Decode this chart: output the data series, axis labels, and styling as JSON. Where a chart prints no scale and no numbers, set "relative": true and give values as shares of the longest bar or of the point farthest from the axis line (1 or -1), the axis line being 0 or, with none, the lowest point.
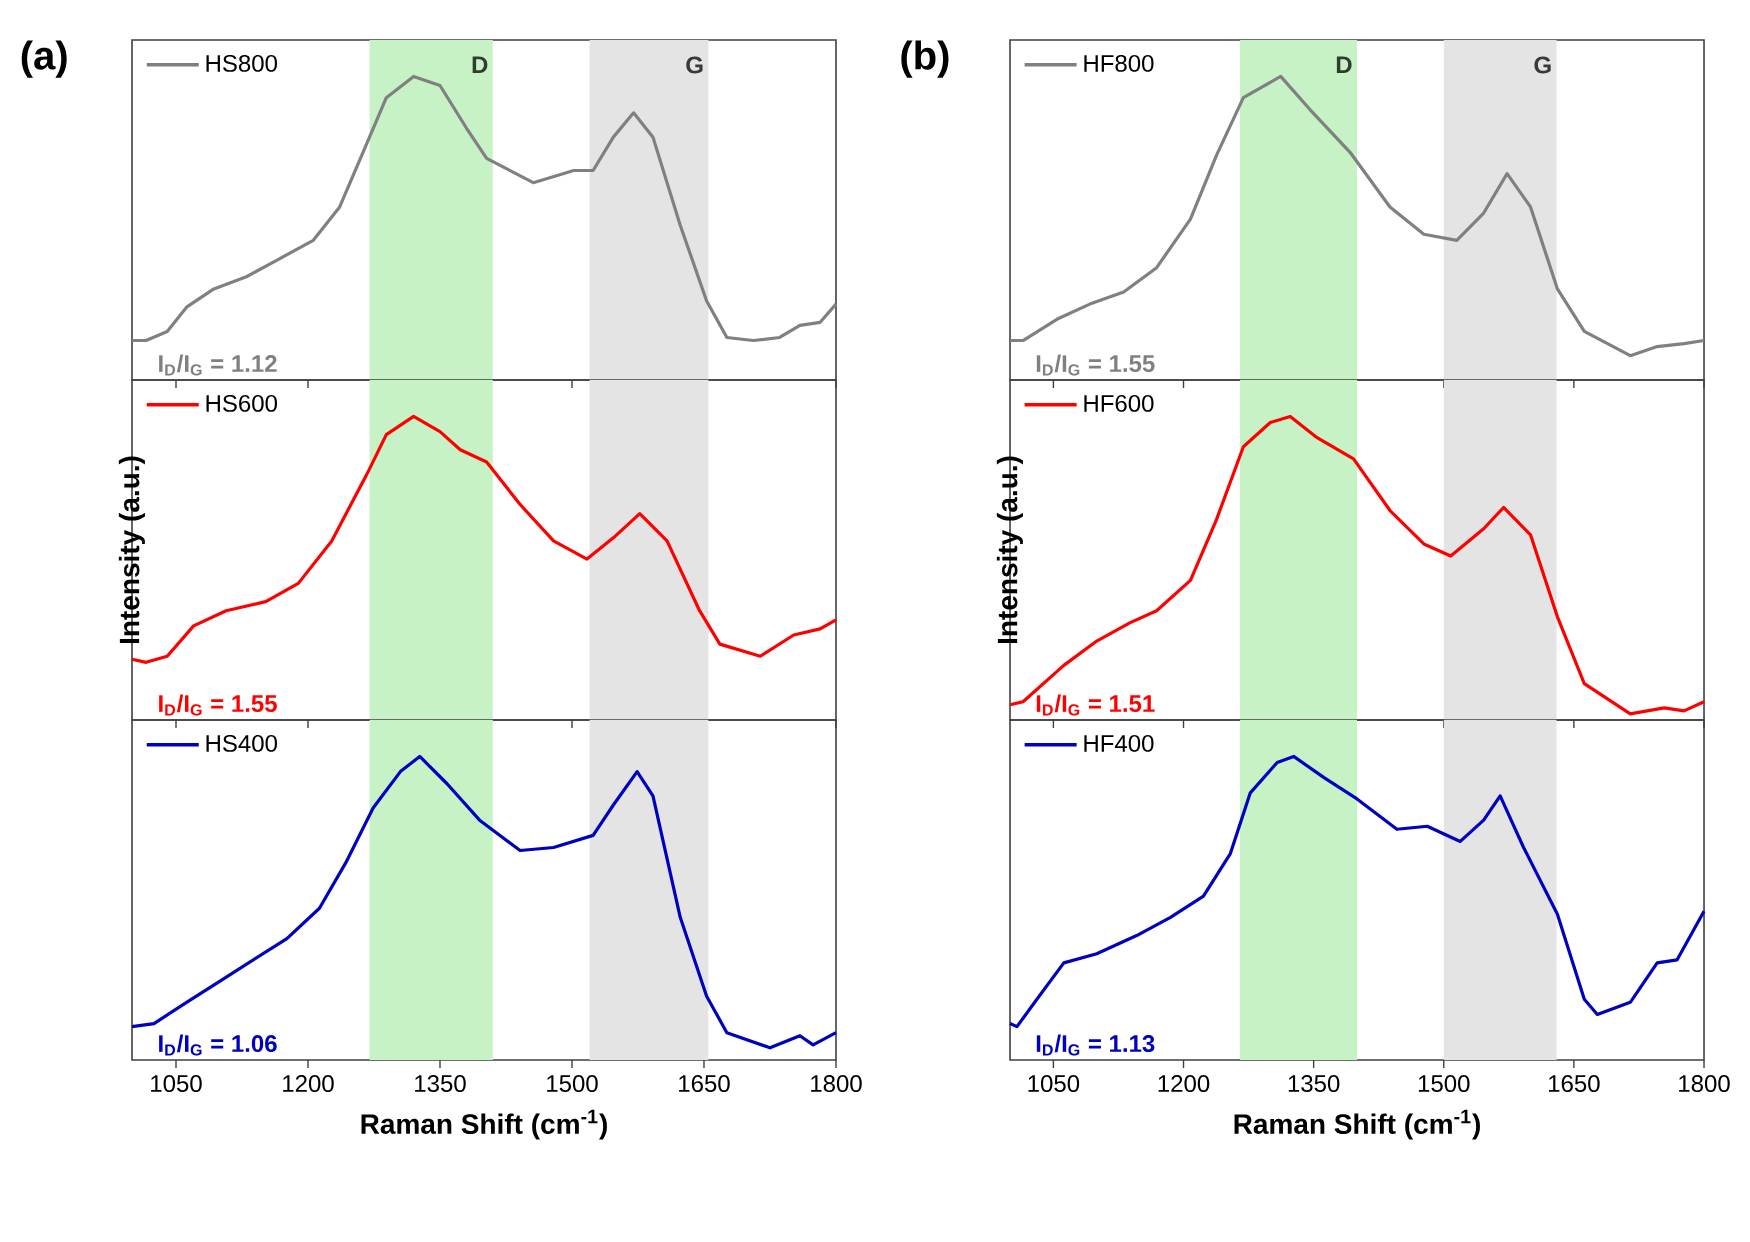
{
  "chart_data": [
    {
      "type": "line",
      "title": "(a)",
      "relative": true,
      "xlim": [
        1000,
        1800
      ],
      "xticks": [
        1050,
        1200,
        1350,
        1500,
        1650,
        1800
      ],
      "tick_labels": false,
      "legend": "top left",
      "line_style": "solid",
      "bands": [
        {
          "axis": "x",
          "from": 1270,
          "to": 1410,
          "label": "D",
          "color": "#c6f2c6"
        },
        {
          "axis": "x",
          "from": 1520,
          "to": 1655,
          "label": "G",
          "color": "#e4e4e4"
        }
      ],
      "annotations": [
        "I$_{D}$/I$_{G}$ = 1.12"
      ],
      "series": [
        {
          "name": "HS800",
          "color": "#808080",
          "x": [
            1000,
            1016,
            1040,
            1062,
            1093,
            1130,
            1168,
            1206,
            1236,
            1267,
            1289,
            1320,
            1350,
            1380,
            1403,
            1456,
            1502,
            1524,
            1547,
            1570,
            1592,
            1623,
            1653,
            1676,
            1706,
            1736,
            1759,
            1782,
            1800
          ],
          "values": [
            0.13,
            0.13,
            0.16,
            0.24,
            0.3,
            0.34,
            0.4,
            0.46,
            0.57,
            0.78,
            0.93,
            1.0,
            0.97,
            0.83,
            0.73,
            0.65,
            0.69,
            0.69,
            0.8,
            0.88,
            0.8,
            0.51,
            0.26,
            0.14,
            0.13,
            0.14,
            0.18,
            0.19,
            0.25
          ]
        }
      ]
    },
    {
      "type": "line",
      "title": "(b)",
      "relative": true,
      "xlim": [
        1000,
        1800
      ],
      "xticks": [
        1050,
        1200,
        1350,
        1500,
        1650,
        1800
      ],
      "tick_labels": false,
      "legend": "top left",
      "line_style": "solid",
      "bands": [
        {
          "axis": "x",
          "from": 1265,
          "to": 1400,
          "label": "D",
          "color": "#c6f2c6"
        },
        {
          "axis": "x",
          "from": 1500,
          "to": 1630,
          "label": "G",
          "color": "#e4e4e4"
        }
      ],
      "annotations": [
        "I$_{D}$/I$_{G}$ = 1.55"
      ],
      "series": [
        {
          "name": "HF800",
          "color": "#808080",
          "x": [
            1000,
            1015,
            1054,
            1092,
            1131,
            1169,
            1208,
            1238,
            1269,
            1312,
            1346,
            1392,
            1438,
            1477,
            1515,
            1546,
            1573,
            1600,
            1631,
            1662,
            1715,
            1746,
            1777,
            1800
          ],
          "values": [
            0.13,
            0.13,
            0.2,
            0.25,
            0.29,
            0.37,
            0.53,
            0.74,
            0.93,
            1.0,
            0.89,
            0.75,
            0.57,
            0.48,
            0.46,
            0.55,
            0.68,
            0.57,
            0.3,
            0.16,
            0.08,
            0.11,
            0.12,
            0.13
          ]
        }
      ]
    },
    {
      "type": "line",
      "relative": true,
      "xlim": [
        1000,
        1800
      ],
      "xticks": [
        1050,
        1200,
        1350,
        1500,
        1650,
        1800
      ],
      "tick_labels": false,
      "legend": "top left",
      "line_style": "solid",
      "ylabel": "Intensity (a.u.)",
      "bands": [
        {
          "axis": "x",
          "from": 1270,
          "to": 1410,
          "color": "#c6f2c6"
        },
        {
          "axis": "x",
          "from": 1520,
          "to": 1655,
          "color": "#e4e4e4"
        }
      ],
      "annotations": [
        "I$_{D}$/I$_{G}$ = 1.55"
      ],
      "series": [
        {
          "name": "HS600",
          "color": "#ff0000",
          "x": [
            1000,
            1016,
            1040,
            1070,
            1107,
            1152,
            1189,
            1227,
            1267,
            1289,
            1320,
            1350,
            1373,
            1403,
            1441,
            1479,
            1517,
            1547,
            1577,
            1608,
            1645,
            1668,
            1714,
            1752,
            1782,
            1800
          ],
          "values": [
            0.2,
            0.19,
            0.21,
            0.31,
            0.36,
            0.39,
            0.45,
            0.59,
            0.81,
            0.94,
            1.0,
            0.95,
            0.89,
            0.85,
            0.71,
            0.59,
            0.53,
            0.6,
            0.68,
            0.59,
            0.36,
            0.25,
            0.21,
            0.28,
            0.3,
            0.33
          ]
        }
      ]
    },
    {
      "type": "line",
      "relative": true,
      "xlim": [
        1000,
        1800
      ],
      "xticks": [
        1050,
        1200,
        1350,
        1500,
        1650,
        1800
      ],
      "tick_labels": false,
      "legend": "top left",
      "line_style": "solid",
      "ylabel": "Intensity (a.u.)",
      "bands": [
        {
          "axis": "x",
          "from": 1265,
          "to": 1400,
          "color": "#c6f2c6"
        },
        {
          "axis": "x",
          "from": 1500,
          "to": 1630,
          "color": "#e4e4e4"
        }
      ],
      "annotations": [
        "I$_{D}$/I$_{G}$ = 1.51"
      ],
      "series": [
        {
          "name": "HF600",
          "color": "#ff0000",
          "x": [
            1000,
            1015,
            1062,
            1100,
            1138,
            1169,
            1208,
            1238,
            1269,
            1300,
            1323,
            1354,
            1396,
            1438,
            1477,
            1508,
            1546,
            1569,
            1600,
            1631,
            1662,
            1715,
            1754,
            1777,
            1800
          ],
          "values": [
            0.05,
            0.06,
            0.18,
            0.26,
            0.32,
            0.36,
            0.46,
            0.66,
            0.9,
            0.98,
            1.0,
            0.93,
            0.86,
            0.69,
            0.58,
            0.54,
            0.63,
            0.7,
            0.61,
            0.34,
            0.12,
            0.02,
            0.04,
            0.03,
            0.06
          ]
        }
      ]
    },
    {
      "type": "line",
      "relative": true,
      "xlim": [
        1000,
        1800
      ],
      "xticks": [
        1050,
        1200,
        1350,
        1500,
        1650,
        1800
      ],
      "tick_labels": "x",
      "legend": "top left",
      "line_style": "solid",
      "xlabel": "Raman Shift (cm$^{-1}$)",
      "bands": [
        {
          "axis": "x",
          "from": 1270,
          "to": 1410,
          "color": "#c6f2c6"
        },
        {
          "axis": "x",
          "from": 1520,
          "to": 1655,
          "color": "#e4e4e4"
        }
      ],
      "annotations": [
        "I$_{D}$/I$_{G}$ = 1.06"
      ],
      "series": [
        {
          "name": "HS400",
          "color": "#0000c0",
          "x": [
            1000,
            1025,
            1062,
            1100,
            1138,
            1176,
            1213,
            1243,
            1274,
            1305,
            1327,
            1358,
            1395,
            1441,
            1479,
            1524,
            1547,
            1574,
            1592,
            1623,
            1653,
            1676,
            1725,
            1759,
            1774,
            1800
          ],
          "values": [
            0.11,
            0.12,
            0.19,
            0.26,
            0.33,
            0.4,
            0.5,
            0.65,
            0.83,
            0.95,
            1.0,
            0.91,
            0.79,
            0.69,
            0.7,
            0.74,
            0.84,
            0.95,
            0.87,
            0.47,
            0.21,
            0.09,
            0.04,
            0.08,
            0.05,
            0.09
          ]
        }
      ]
    },
    {
      "type": "line",
      "relative": true,
      "xlim": [
        1000,
        1800
      ],
      "xticks": [
        1050,
        1200,
        1350,
        1500,
        1650,
        1800
      ],
      "tick_labels": "x",
      "legend": "top left",
      "line_style": "solid",
      "xlabel": "Raman Shift (cm$^{-1}$)",
      "bands": [
        {
          "axis": "x",
          "from": 1265,
          "to": 1400,
          "color": "#c6f2c6"
        },
        {
          "axis": "x",
          "from": 1500,
          "to": 1630,
          "color": "#e4e4e4"
        }
      ],
      "annotations": [
        "I$_{D}$/I$_{G}$ = 1.13"
      ],
      "series": [
        {
          "name": "HF400",
          "color": "#0000c0",
          "x": [
            1000,
            1008,
            1031,
            1062,
            1100,
            1146,
            1185,
            1223,
            1254,
            1277,
            1308,
            1327,
            1362,
            1400,
            1446,
            1481,
            1519,
            1546,
            1565,
            1592,
            1631,
            1662,
            1677,
            1715,
            1746,
            1769,
            1800
          ],
          "values": [
            0.12,
            0.11,
            0.2,
            0.32,
            0.35,
            0.41,
            0.47,
            0.54,
            0.68,
            0.88,
            0.98,
            1.0,
            0.93,
            0.86,
            0.76,
            0.77,
            0.72,
            0.79,
            0.87,
            0.7,
            0.48,
            0.2,
            0.15,
            0.19,
            0.32,
            0.33,
            0.49
          ]
        }
      ]
    }
  ]
}
